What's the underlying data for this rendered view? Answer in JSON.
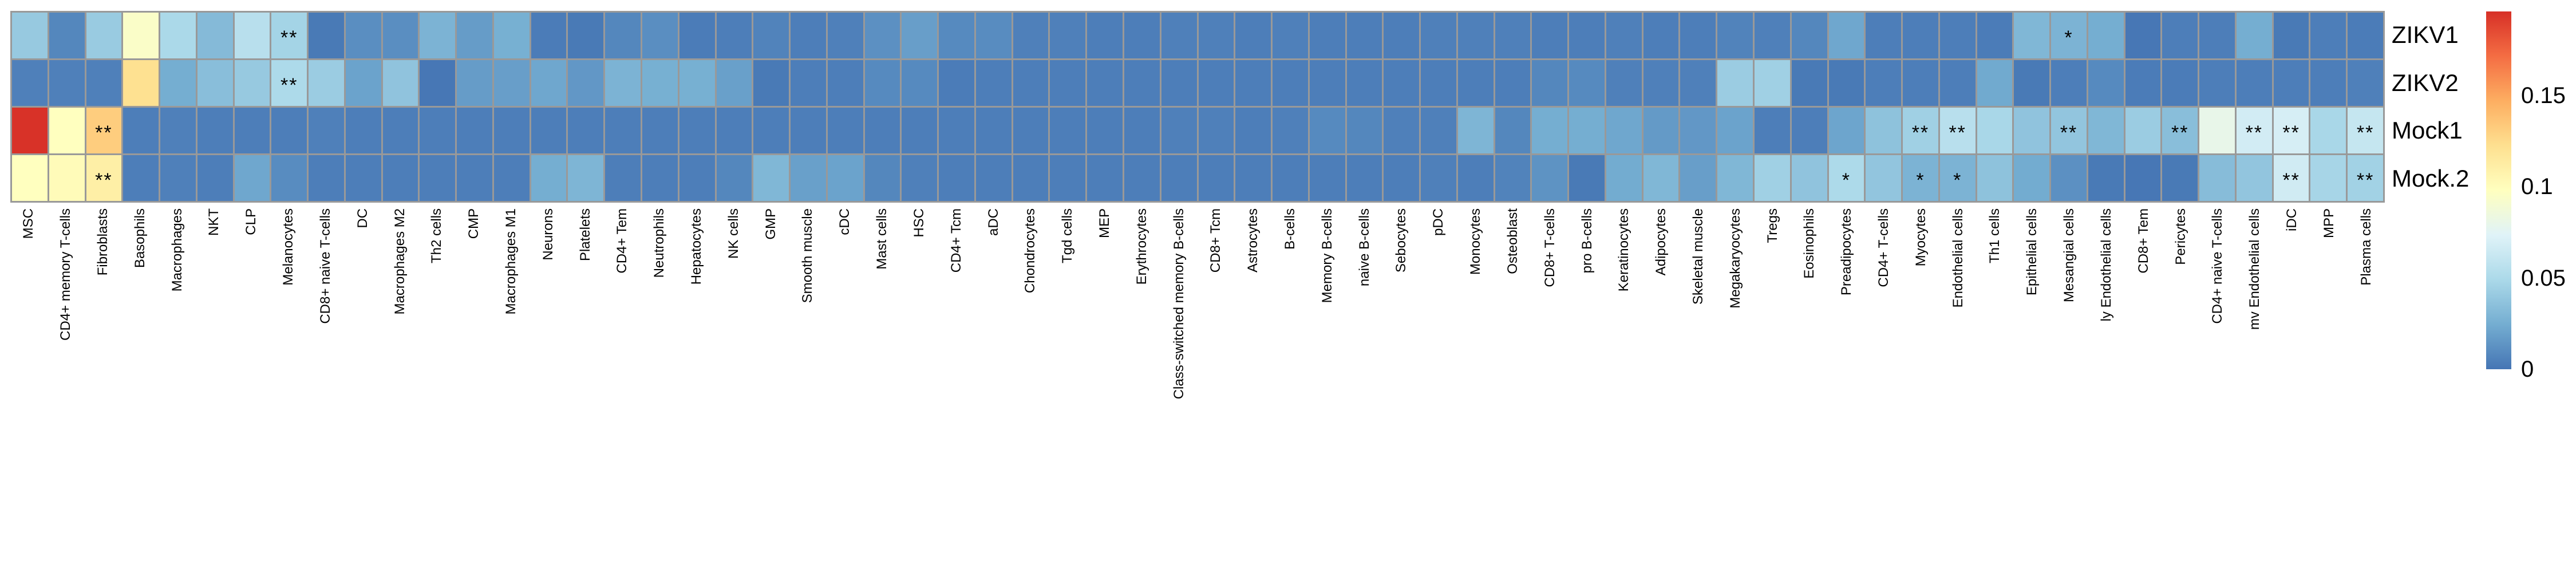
{
  "chart_data": {
    "type": "heatmap",
    "title": "",
    "legend_position": "right",
    "grid_line_color": "#999999",
    "rows": [
      "ZIKV1",
      "ZIKV2",
      "Mock1",
      "Mock.2"
    ],
    "columns": [
      "MSC",
      "CD4+ memory T-cells",
      "Fibroblasts",
      "Basophils",
      "Macrophages",
      "NKT",
      "CLP",
      "Melanocytes",
      "CD8+ naive T-cells",
      "DC",
      "Macrophages M2",
      "Th2 cells",
      "CMP",
      "Macrophages M1",
      "Neurons",
      "Platelets",
      "CD4+ Tem",
      "Neutrophils",
      "Hepatocytes",
      "NK cells",
      "GMP",
      "Smooth muscle",
      "cDC",
      "Mast cells",
      "HSC",
      "CD4+ Tcm",
      "aDC",
      "Chondrocytes",
      "Tgd cells",
      "MEP",
      "Erythrocytes",
      "Class-switched memory B-cells",
      "CD8+ Tcm",
      "Astrocytes",
      "B-cells",
      "Memory B-cells",
      "naive B-cells",
      "Sebocytes",
      "pDC",
      "Monocytes",
      "Osteoblast",
      "CD8+ T-cells",
      "pro B-cells",
      "Keratinocytes",
      "Adipocytes",
      "Skeletal muscle",
      "Megakaryocytes",
      "Tregs",
      "Eosinophils",
      "Preadipocytes",
      "CD4+ T-cells",
      "Myocytes",
      "Endothelial cells",
      "Th1 cells",
      "Epithelial cells",
      "Mesangial cells",
      "ly Endothelial cells",
      "CD8+ Tem",
      "Pericytes",
      "CD4+ naive T-cells",
      "mv Endothelial cells",
      "iDC",
      "MPP",
      "Plasma cells"
    ],
    "values": [
      [
        0.04,
        0.008,
        0.041,
        0.094,
        0.049,
        0.032,
        0.055,
        0.046,
        0.002,
        0.011,
        0.011,
        0.028,
        0.017,
        0.026,
        0.003,
        0.002,
        0.008,
        0.011,
        0.003,
        0.004,
        0.006,
        0.004,
        0.005,
        0.012,
        0.018,
        0.009,
        0.01,
        0.005,
        0.005,
        0.004,
        0.004,
        0.005,
        0.005,
        0.004,
        0.005,
        0.004,
        0.004,
        0.004,
        0.005,
        0.005,
        0.005,
        0.004,
        0.004,
        0.005,
        0.004,
        0.004,
        0.006,
        0.005,
        0.008,
        0.022,
        0.004,
        0.004,
        0.004,
        0.003,
        0.03,
        0.028,
        0.025,
        0.001,
        0.004,
        0.004,
        0.025,
        0.002,
        0.004,
        0.003
      ],
      [
        0.005,
        0.005,
        0.005,
        0.122,
        0.025,
        0.034,
        0.04,
        0.05,
        0.042,
        0.02,
        0.037,
        0.001,
        0.017,
        0.018,
        0.022,
        0.015,
        0.028,
        0.026,
        0.026,
        0.019,
        0.002,
        0.004,
        0.004,
        0.009,
        0.009,
        0.003,
        0.004,
        0.004,
        0.004,
        0.004,
        0.004,
        0.004,
        0.004,
        0.004,
        0.004,
        0.004,
        0.004,
        0.004,
        0.004,
        0.004,
        0.004,
        0.008,
        0.009,
        0.005,
        0.005,
        0.005,
        0.042,
        0.044,
        0.002,
        0.002,
        0.004,
        0.004,
        0.004,
        0.023,
        0.002,
        0.004,
        0.009,
        0.003,
        0.003,
        0.004,
        0.004,
        0.004,
        0.004,
        0.005
      ],
      [
        0.195,
        0.098,
        0.132,
        0.004,
        0.005,
        0.004,
        0.004,
        0.004,
        0.005,
        0.004,
        0.004,
        0.004,
        0.004,
        0.004,
        0.004,
        0.004,
        0.004,
        0.004,
        0.004,
        0.004,
        0.004,
        0.004,
        0.004,
        0.004,
        0.004,
        0.004,
        0.004,
        0.004,
        0.004,
        0.004,
        0.004,
        0.005,
        0.005,
        0.004,
        0.005,
        0.009,
        0.008,
        0.005,
        0.005,
        0.029,
        0.008,
        0.025,
        0.025,
        0.022,
        0.016,
        0.015,
        0.02,
        0.004,
        0.004,
        0.021,
        0.036,
        0.044,
        0.055,
        0.048,
        0.037,
        0.038,
        0.03,
        0.042,
        0.034,
        0.08,
        0.067,
        0.069,
        0.048,
        0.061
      ],
      [
        0.098,
        0.101,
        0.111,
        0.004,
        0.005,
        0.004,
        0.022,
        0.01,
        0.004,
        0.004,
        0.004,
        0.004,
        0.004,
        0.004,
        0.025,
        0.029,
        0.004,
        0.004,
        0.004,
        0.008,
        0.03,
        0.019,
        0.02,
        0.008,
        0.005,
        0.004,
        0.004,
        0.004,
        0.004,
        0.004,
        0.004,
        0.004,
        0.004,
        0.004,
        0.004,
        0.004,
        0.004,
        0.004,
        0.005,
        0.004,
        0.006,
        0.013,
        0.002,
        0.024,
        0.03,
        0.018,
        0.03,
        0.044,
        0.037,
        0.05,
        0.038,
        0.028,
        0.028,
        0.036,
        0.024,
        0.012,
        0.002,
        0.001,
        0.002,
        0.033,
        0.038,
        0.066,
        0.047,
        0.045
      ]
    ],
    "significance": [
      [
        "",
        "",
        "",
        "",
        "",
        "",
        "",
        "**",
        "",
        "",
        "",
        "",
        "",
        "",
        "",
        "",
        "",
        "",
        "",
        "",
        "",
        "",
        "",
        "",
        "",
        "",
        "",
        "",
        "",
        "",
        "",
        "",
        "",
        "",
        "",
        "",
        "",
        "",
        "",
        "",
        "",
        "",
        "",
        "",
        "",
        "",
        "",
        "",
        "",
        "",
        "",
        "",
        "",
        "",
        "",
        "*",
        "",
        "",
        "",
        "",
        "",
        "",
        "",
        ""
      ],
      [
        "",
        "",
        "",
        "",
        "",
        "",
        "",
        "**",
        "",
        "",
        "",
        "",
        "",
        "",
        "",
        "",
        "",
        "",
        "",
        "",
        "",
        "",
        "",
        "",
        "",
        "",
        "",
        "",
        "",
        "",
        "",
        "",
        "",
        "",
        "",
        "",
        "",
        "",
        "",
        "",
        "",
        "",
        "",
        "",
        "",
        "",
        "",
        "",
        "",
        "",
        "",
        "",
        "",
        "",
        "",
        "",
        "",
        "",
        "",
        "",
        "",
        "",
        "",
        ""
      ],
      [
        "",
        "",
        "**",
        "",
        "",
        "",
        "",
        "",
        "",
        "",
        "",
        "",
        "",
        "",
        "",
        "",
        "",
        "",
        "",
        "",
        "",
        "",
        "",
        "",
        "",
        "",
        "",
        "",
        "",
        "",
        "",
        "",
        "",
        "",
        "",
        "",
        "",
        "",
        "",
        "",
        "",
        "",
        "",
        "",
        "",
        "",
        "",
        "",
        "",
        "",
        "",
        "**",
        "**",
        "",
        "",
        "**",
        "",
        "",
        "**",
        "",
        "**",
        "**",
        "",
        "**"
      ],
      [
        "",
        "",
        "**",
        "",
        "",
        "",
        "",
        "",
        "",
        "",
        "",
        "",
        "",
        "",
        "",
        "",
        "",
        "",
        "",
        "",
        "",
        "",
        "",
        "",
        "",
        "",
        "",
        "",
        "",
        "",
        "",
        "",
        "",
        "",
        "",
        "",
        "",
        "",
        "",
        "",
        "",
        "",
        "",
        "",
        "",
        "",
        "",
        "",
        "",
        "*",
        "",
        "*",
        "*",
        "",
        "",
        "",
        "",
        "",
        "",
        "",
        "",
        "**",
        "",
        "**"
      ]
    ],
    "colorbar": {
      "vmin": 0,
      "vmax": 0.196,
      "ticks": [
        {
          "label": "0.15",
          "value": 0.15
        },
        {
          "label": "0.1",
          "value": 0.1
        },
        {
          "label": "0.05",
          "value": 0.05
        },
        {
          "label": "0",
          "value": 0
        }
      ]
    },
    "colormap": [
      "#4575b4",
      "#74add1",
      "#abd9e9",
      "#e0f3f8",
      "#ffffbf",
      "#fee090",
      "#fdae61",
      "#f46d43",
      "#d73027"
    ]
  }
}
